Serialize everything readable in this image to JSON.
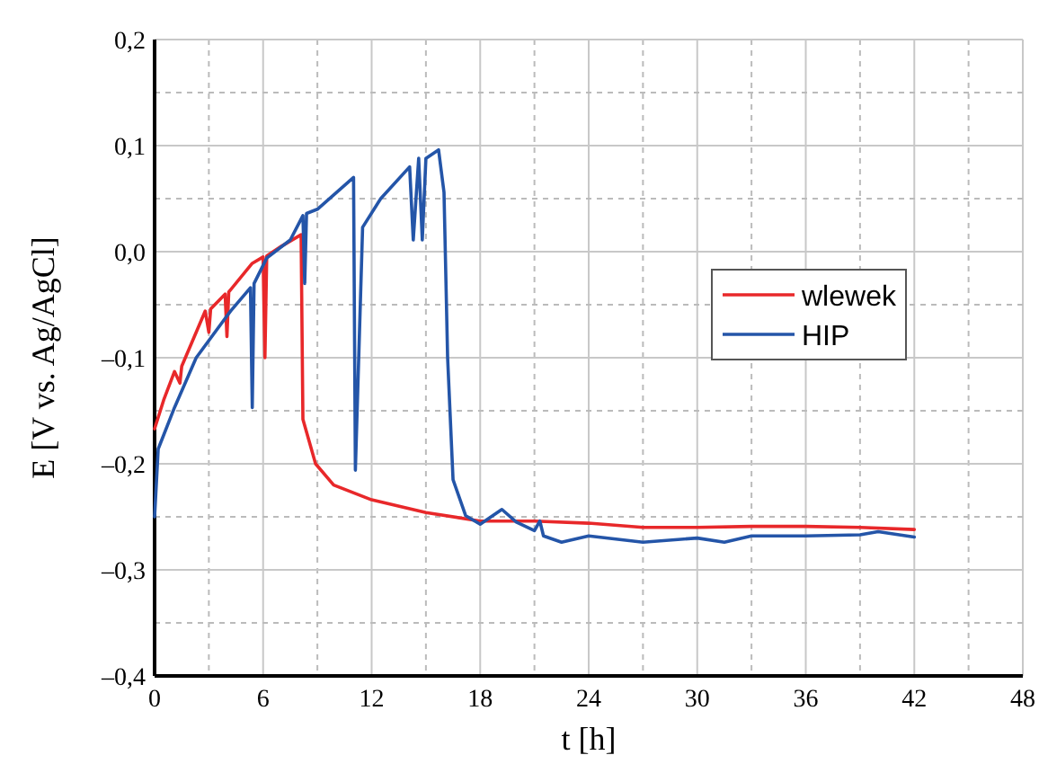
{
  "chart_data": {
    "type": "line",
    "xlabel": "t [h]",
    "ylabel": "E [V vs. Ag/AgCl]",
    "xlim": [
      0,
      48
    ],
    "xticks": [
      0,
      6,
      12,
      18,
      24,
      30,
      36,
      42,
      48
    ],
    "ylim": [
      -0.4,
      0.2
    ],
    "yticks": [
      {
        "value": -0.4,
        "label": "–0,4"
      },
      {
        "value": -0.3,
        "label": "–0,3"
      },
      {
        "value": -0.2,
        "label": "–0,2"
      },
      {
        "value": -0.1,
        "label": "–0,1"
      },
      {
        "value": 0,
        "label": "0,0"
      },
      {
        "value": 0.1,
        "label": "0,1"
      },
      {
        "value": 0.2,
        "label": "0,2"
      }
    ],
    "grid": true,
    "legend": "right",
    "line_style": "solid",
    "series": [
      {
        "name": "wlewek",
        "color": "#e8282a",
        "x": [
          0,
          0.5,
          1.1,
          1.4,
          1.5,
          2.8,
          3.0,
          3.1,
          3.9,
          4.0,
          4.1,
          5.4,
          6.0,
          6.1,
          6.2,
          7.0,
          8.1,
          8.2,
          8.9,
          9.9,
          12,
          15,
          18,
          21,
          24,
          27,
          30,
          33,
          36,
          39,
          42
        ],
        "values": [
          -0.167,
          -0.14,
          -0.113,
          -0.124,
          -0.108,
          -0.056,
          -0.076,
          -0.054,
          -0.04,
          -0.08,
          -0.038,
          -0.011,
          -0.005,
          -0.1,
          -0.004,
          0.005,
          0.016,
          -0.158,
          -0.2,
          -0.22,
          -0.234,
          -0.246,
          -0.254,
          -0.254,
          -0.256,
          -0.26,
          -0.26,
          -0.259,
          -0.259,
          -0.26,
          -0.262
        ]
      },
      {
        "name": "HIP",
        "color": "#2455a8",
        "x": [
          0,
          0.2,
          1.1,
          2.3,
          4.2,
          5.3,
          5.4,
          5.5,
          6.2,
          7.5,
          8.2,
          8.3,
          8.4,
          9,
          11,
          11.1,
          11.5,
          12.5,
          14.1,
          14.3,
          14.6,
          14.8,
          15.0,
          15.7,
          16,
          16.2,
          16.5,
          17.2,
          18,
          19.2,
          20,
          21,
          21.3,
          21.5,
          22.5,
          24,
          27,
          30,
          31.5,
          33,
          36,
          39,
          40,
          42
        ],
        "values": [
          -0.25,
          -0.186,
          -0.147,
          -0.1,
          -0.056,
          -0.034,
          -0.147,
          -0.03,
          -0.006,
          0.011,
          0.034,
          -0.03,
          0.036,
          0.04,
          0.07,
          -0.206,
          0.023,
          0.05,
          0.08,
          0.011,
          0.088,
          0.011,
          0.088,
          0.096,
          0.056,
          -0.1,
          -0.215,
          -0.249,
          -0.257,
          -0.243,
          -0.255,
          -0.263,
          -0.254,
          -0.268,
          -0.274,
          -0.268,
          -0.274,
          -0.27,
          -0.274,
          -0.268,
          -0.268,
          -0.267,
          -0.264,
          -0.269
        ]
      }
    ]
  }
}
